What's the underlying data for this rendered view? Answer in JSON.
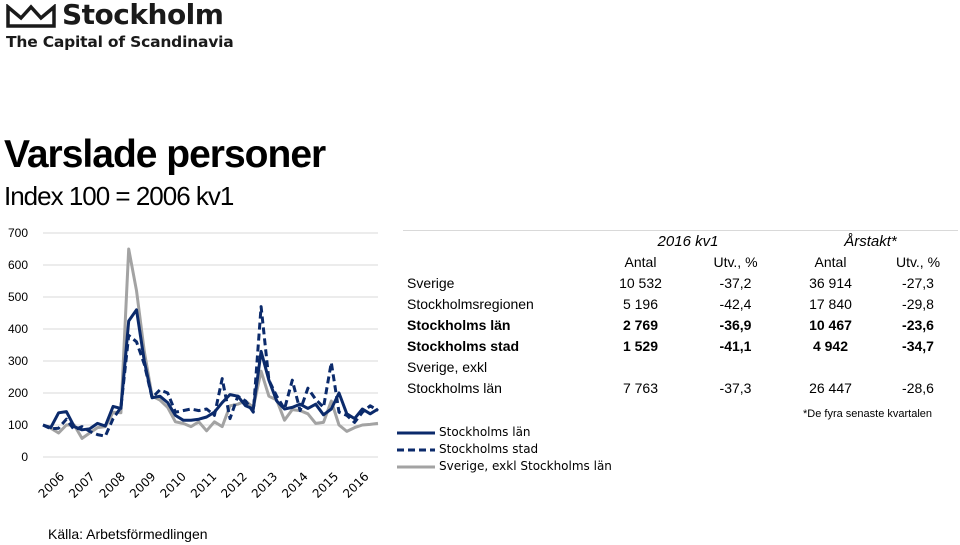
{
  "brand": {
    "logo_text": "Stockholm",
    "tagline": "The Capital of Scandinavia"
  },
  "heading": {
    "title": "Varslade personer",
    "subtitle": "Index 100 = 2006 kv1"
  },
  "colors": {
    "stockholms_lan": "#0b2a6b",
    "stockholms_stad": "#0b2a6b",
    "sverige_exkl": "#a3a3a3",
    "grid": "#d9d9d9"
  },
  "chart_data": {
    "type": "line",
    "xlabel": "",
    "ylabel": "",
    "ylim": [
      0,
      700
    ],
    "yticks": [
      0,
      100,
      200,
      300,
      400,
      500,
      600,
      700
    ],
    "year_labels": [
      "2006",
      "2007",
      "2008",
      "2009",
      "2010",
      "2011",
      "2012",
      "2013",
      "2014",
      "2015",
      "2016"
    ],
    "x": [
      "2006 kv1",
      "2006 kv2",
      "2006 kv3",
      "2006 kv4",
      "2007 kv1",
      "2007 kv2",
      "2007 kv3",
      "2007 kv4",
      "2008 kv1",
      "2008 kv2",
      "2008 kv3",
      "2008 kv4",
      "2009 kv1",
      "2009 kv2",
      "2009 kv3",
      "2009 kv4",
      "2010 kv1",
      "2010 kv2",
      "2010 kv3",
      "2010 kv4",
      "2011 kv1",
      "2011 kv2",
      "2011 kv3",
      "2011 kv4",
      "2012 kv1",
      "2012 kv2",
      "2012 kv3",
      "2012 kv4",
      "2013 kv1",
      "2013 kv2",
      "2013 kv3",
      "2013 kv4",
      "2014 kv1",
      "2014 kv2",
      "2014 kv3",
      "2014 kv4",
      "2015 kv1",
      "2015 kv2",
      "2015 kv3",
      "2015 kv4",
      "2016 kv1",
      "2016 kv2",
      "2016 kv3",
      "2016 kv4"
    ],
    "grid": "horizontal",
    "legend_position": "bottom-right",
    "series": [
      {
        "name": "Stockholms län",
        "style": "solid",
        "values": [
          100,
          92,
          138,
          142,
          95,
          85,
          88,
          105,
          97,
          158,
          152,
          425,
          460,
          300,
          185,
          190,
          170,
          130,
          115,
          115,
          118,
          125,
          140,
          170,
          195,
          190,
          160,
          150,
          330,
          240,
          175,
          150,
          155,
          165,
          152,
          165,
          132,
          150,
          200,
          135,
          120,
          150,
          135,
          150
        ]
      },
      {
        "name": "Stockholms stad",
        "style": "dashed",
        "values": [
          100,
          88,
          90,
          118,
          85,
          95,
          80,
          70,
          65,
          120,
          155,
          380,
          360,
          290,
          185,
          210,
          200,
          140,
          145,
          150,
          145,
          150,
          130,
          245,
          120,
          190,
          175,
          140,
          470,
          240,
          190,
          150,
          240,
          145,
          215,
          180,
          155,
          295,
          140,
          130,
          108,
          140,
          160,
          145
        ]
      },
      {
        "name": "Sverige, exkl Stockholms län",
        "style": "solid",
        "values": [
          100,
          90,
          75,
          100,
          100,
          58,
          75,
          92,
          95,
          140,
          138,
          650,
          520,
          330,
          190,
          178,
          155,
          110,
          105,
          95,
          110,
          82,
          110,
          95,
          160,
          165,
          175,
          155,
          268,
          190,
          178,
          115,
          148,
          145,
          135,
          105,
          108,
          175,
          100,
          80,
          92,
          100,
          102,
          105
        ]
      }
    ]
  },
  "table": {
    "periods": [
      "2016 kv1",
      "Årstakt*"
    ],
    "columns": [
      "Antal",
      "Utv., %",
      "Antal",
      "Utv., %"
    ],
    "rows": [
      {
        "label": "Sverige",
        "values": [
          "10 532",
          "-37,2",
          "36 914",
          "-27,3"
        ],
        "bold": false
      },
      {
        "label": "Stockholmsregionen",
        "values": [
          "5 196",
          "-42,4",
          "17 840",
          "-29,8"
        ],
        "bold": false
      },
      {
        "label": "Stockholms län",
        "values": [
          "2 769",
          "-36,9",
          "10 467",
          "-23,6"
        ],
        "bold": true
      },
      {
        "label": "Stockholms stad",
        "values": [
          "1 529",
          "-41,1",
          "4 942",
          "-34,7"
        ],
        "bold": true
      },
      {
        "label": "Sverige, exkl",
        "values": [
          "",
          "",
          "",
          ""
        ],
        "bold": false
      },
      {
        "label": "Stockholms län",
        "values": [
          "7 763",
          "-37,3",
          "26 447",
          "-28,6"
        ],
        "bold": false
      }
    ],
    "footnote": "*De fyra senaste kvartalen"
  },
  "legend": [
    {
      "label": "Stockholms län",
      "style": "solid"
    },
    {
      "label": "Stockholms stad",
      "style": "dashed"
    },
    {
      "label": "Sverige, exkl Stockholms län",
      "style": "solid"
    }
  ],
  "source": "Källa: Arbetsförmedlingen"
}
